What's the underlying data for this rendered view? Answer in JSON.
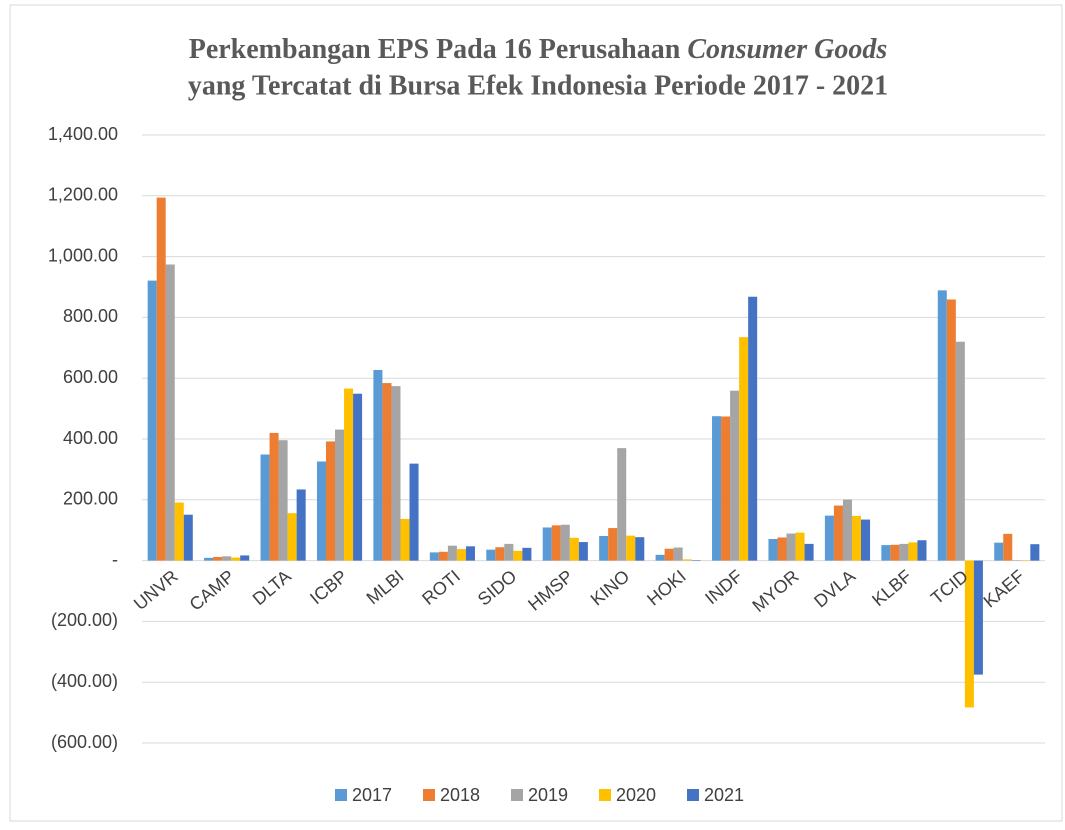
{
  "chart_data": {
    "type": "bar",
    "title": {
      "line1": "Perkembangan EPS Pada 16 Perusahaan",
      "line1_italic": "Consumer Goods",
      "line2": "yang Tercatat di Bursa Efek Indonesia Periode 2017 - 2021"
    },
    "categories": [
      "UNVR",
      "CAMP",
      "DLTA",
      "ICBP",
      "MLBI",
      "ROTI",
      "SIDO",
      "HMSP",
      "KINO",
      "HOKI",
      "INDF",
      "MYOR",
      "DVLA",
      "KLBF",
      "TCID",
      "KAEF"
    ],
    "series": [
      {
        "name": "2017",
        "color": "#5b9bd5",
        "values": [
          921,
          9,
          349,
          326,
          627,
          27,
          36,
          109,
          81,
          19,
          475,
          71,
          148,
          51,
          889,
          59
        ]
      },
      {
        "name": "2018",
        "color": "#ed7d31",
        "values": [
          1194,
          12,
          420,
          392,
          584,
          29,
          44,
          116,
          107,
          39,
          474,
          76,
          181,
          52,
          859,
          88
        ]
      },
      {
        "name": "2019",
        "color": "#a5a5a5",
        "values": [
          974,
          14,
          396,
          431,
          574,
          49,
          55,
          118,
          370,
          43,
          559,
          89,
          201,
          55,
          720,
          1
        ]
      },
      {
        "name": "2020",
        "color": "#ffc000",
        "values": [
          191,
          10,
          156,
          566,
          137,
          38,
          32,
          75,
          82,
          4,
          735,
          92,
          147,
          60,
          -483,
          -1
        ]
      },
      {
        "name": "2021",
        "color": "#4472c4",
        "values": [
          151,
          17,
          234,
          549,
          319,
          47,
          42,
          61,
          77,
          1,
          868,
          55,
          135,
          67,
          -375,
          54
        ]
      }
    ],
    "ylim": [
      -600,
      1400
    ],
    "yticks": [
      {
        "value": -600,
        "label": "(600.00)"
      },
      {
        "value": -400,
        "label": "(400.00)"
      },
      {
        "value": -200,
        "label": "(200.00)"
      },
      {
        "value": 0,
        "label": "-"
      },
      {
        "value": 200,
        "label": "200.00"
      },
      {
        "value": 400,
        "label": "400.00"
      },
      {
        "value": 600,
        "label": "600.00"
      },
      {
        "value": 800,
        "label": "800.00"
      },
      {
        "value": 1000,
        "label": "1,000.00"
      },
      {
        "value": 1200,
        "label": "1,200.00"
      },
      {
        "value": 1400,
        "label": "1,400.00"
      }
    ],
    "grid": true,
    "legend": "bottom"
  }
}
